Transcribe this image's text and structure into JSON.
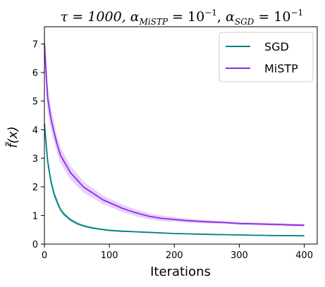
{
  "chart_data": {
    "type": "line",
    "title": "τ = 1000, α_MiSTP = 10⁻¹, α_SGD = 10⁻¹",
    "title_parts": {
      "tau": "τ = 1000, ",
      "alpha": "α",
      "sub_mistp": "MiSTP",
      "eq1": " = 10",
      "exp1": "−1",
      "comma": ", ",
      "sub_sgd": "SGD",
      "eq2": " = 10",
      "exp2": "−1"
    },
    "xlabel": "Iterations",
    "ylabel": "f̃(x)",
    "xlim": [
      0,
      420
    ],
    "ylim": [
      0,
      7.6
    ],
    "x_ticks": [
      0,
      100,
      200,
      300,
      400
    ],
    "y_ticks": [
      0,
      1,
      2,
      3,
      4,
      5,
      6,
      7
    ],
    "grid": false,
    "legend_position": "top-right",
    "series": [
      {
        "name": "SGD",
        "color": "#008080",
        "band_color": "#7fcccc",
        "x": [
          0,
          5,
          10,
          15,
          20,
          25,
          30,
          40,
          50,
          60,
          70,
          80,
          90,
          100,
          120,
          140,
          160,
          180,
          200,
          220,
          250,
          280,
          300,
          320,
          350,
          380,
          400
        ],
        "y": [
          4.2,
          2.9,
          2.2,
          1.75,
          1.45,
          1.2,
          1.05,
          0.85,
          0.72,
          0.64,
          0.58,
          0.54,
          0.51,
          0.48,
          0.45,
          0.43,
          0.41,
          0.39,
          0.37,
          0.36,
          0.34,
          0.33,
          0.32,
          0.31,
          0.3,
          0.295,
          0.29
        ],
        "band": [
          0.25,
          0.2,
          0.15,
          0.12,
          0.1,
          0.08,
          0.07,
          0.06,
          0.05,
          0.04,
          0.04,
          0.03,
          0.03,
          0.03,
          0.03,
          0.02,
          0.02,
          0.02,
          0.02,
          0.02,
          0.02,
          0.02,
          0.02,
          0.02,
          0.02,
          0.02,
          0.02
        ]
      },
      {
        "name": "MiSTP",
        "color": "#8a2be2",
        "band_color": "#d9b3ff",
        "x": [
          0,
          5,
          10,
          15,
          20,
          25,
          30,
          40,
          50,
          60,
          70,
          80,
          90,
          100,
          120,
          140,
          160,
          180,
          200,
          220,
          250,
          280,
          300,
          320,
          350,
          380,
          400
        ],
        "y": [
          7.0,
          5.1,
          4.4,
          3.9,
          3.45,
          3.1,
          2.9,
          2.5,
          2.25,
          2.0,
          1.85,
          1.7,
          1.55,
          1.45,
          1.25,
          1.1,
          0.98,
          0.9,
          0.86,
          0.82,
          0.78,
          0.75,
          0.72,
          0.71,
          0.69,
          0.67,
          0.66
        ],
        "band": [
          0.6,
          0.5,
          0.4,
          0.35,
          0.3,
          0.28,
          0.26,
          0.24,
          0.22,
          0.2,
          0.18,
          0.16,
          0.15,
          0.14,
          0.13,
          0.12,
          0.11,
          0.1,
          0.08,
          0.07,
          0.06,
          0.05,
          0.05,
          0.05,
          0.05,
          0.05,
          0.05
        ]
      }
    ]
  }
}
